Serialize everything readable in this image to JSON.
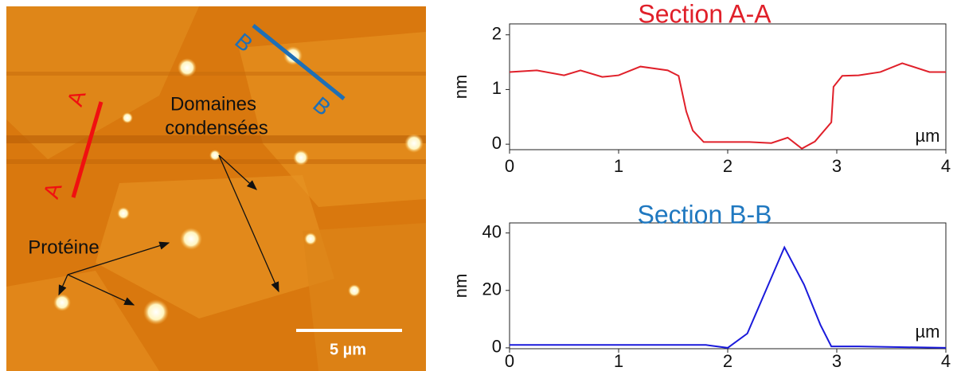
{
  "image": {
    "section_a_labels": [
      "A",
      "A"
    ],
    "section_b_labels": [
      "B",
      "B"
    ],
    "domains_label": [
      "Domaines",
      "condensées"
    ],
    "protein_label": "Protéine",
    "scale_bar": "5 µm"
  },
  "chart_data": [
    {
      "type": "line",
      "title": "Section A-A",
      "title_color": "#e0202a",
      "xlabel": "µm",
      "ylabel": "nm",
      "x": [
        0,
        0.25,
        0.5,
        0.65,
        0.85,
        1.0,
        1.2,
        1.45,
        1.55,
        1.62,
        1.68,
        1.78,
        2.0,
        2.2,
        2.4,
        2.55,
        2.68,
        2.8,
        2.95,
        2.97,
        3.05,
        3.2,
        3.4,
        3.6,
        3.85,
        4.0
      ],
      "series": [
        {
          "name": "Section A-A",
          "color": "#e0202a",
          "values": [
            1.32,
            1.35,
            1.26,
            1.35,
            1.23,
            1.26,
            1.42,
            1.35,
            1.25,
            0.6,
            0.25,
            0.04,
            0.04,
            0.04,
            0.02,
            0.12,
            -0.08,
            0.05,
            0.4,
            1.05,
            1.25,
            1.26,
            1.32,
            1.48,
            1.32,
            1.32
          ]
        }
      ],
      "xlim": [
        0,
        4
      ],
      "xticks": [
        0,
        1,
        2,
        3,
        4
      ],
      "ylim": [
        -0.1,
        2.2
      ],
      "yticks": [
        0,
        1,
        2
      ]
    },
    {
      "type": "line",
      "title": "Section B-B",
      "title_color": "#1f78c0",
      "xlabel": "µm",
      "ylabel": "nm",
      "x": [
        0,
        1.8,
        2.0,
        2.18,
        2.35,
        2.52,
        2.7,
        2.85,
        2.95,
        3.2,
        4.0
      ],
      "series": [
        {
          "name": "Section B-B",
          "color": "#1a1adb",
          "values": [
            1,
            1,
            0,
            5,
            20,
            35,
            22,
            8,
            0.5,
            0.5,
            0
          ]
        }
      ],
      "xlim": [
        0,
        4
      ],
      "xticks": [
        0,
        1,
        2,
        3,
        4
      ],
      "ylim": [
        -0.3,
        43.5
      ],
      "yticks": [
        0,
        20,
        40
      ]
    }
  ]
}
